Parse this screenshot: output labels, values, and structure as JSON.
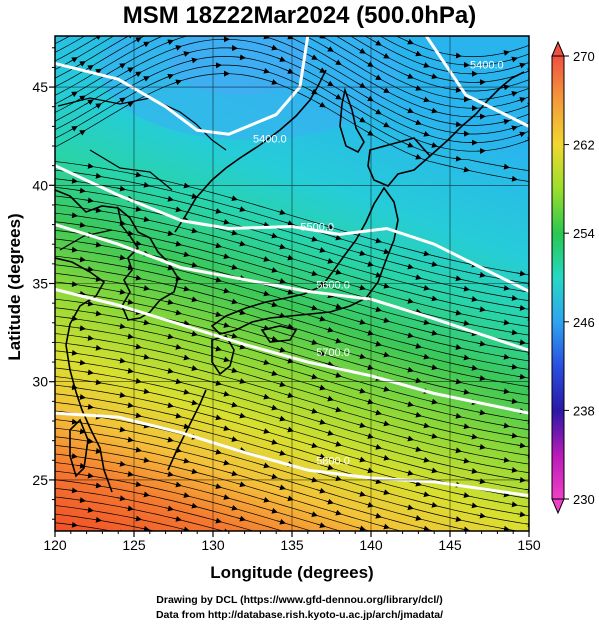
{
  "title": "MSM 18Z22Mar2024 (500.0hPa)",
  "axes": {
    "xlabel": "Longitude (degrees)",
    "ylabel": "Latitude  (degrees)",
    "x_ticks": [
      "120",
      "125",
      "130",
      "135",
      "140",
      "145",
      "150"
    ],
    "y_ticks": [
      "25",
      "30",
      "35",
      "40",
      "45"
    ],
    "xlim": [
      120,
      150
    ],
    "ylim": [
      22.4,
      47.6
    ]
  },
  "colorbar": {
    "ticks": [
      "270",
      "262",
      "254",
      "246",
      "238",
      "230"
    ],
    "min": 230,
    "max": 270,
    "colors_top_to_bottom": [
      "#f05040",
      "#f49a3a",
      "#f0d830",
      "#9bde2c",
      "#28c850",
      "#26d8c4",
      "#2ea4f0",
      "#2850e0",
      "#2a18a8",
      "#b81ab8",
      "#f040c8"
    ]
  },
  "contours": [
    {
      "label": "5400.0",
      "lat_path": [
        [
          120,
          46.2
        ],
        [
          124,
          45.4
        ],
        [
          127,
          44.0
        ],
        [
          129,
          42.8
        ],
        [
          131,
          42.6
        ],
        [
          134,
          43.6
        ],
        [
          135.5,
          45.0
        ],
        [
          136,
          47.6
        ]
      ]
    },
    {
      "label": "5400.0",
      "lat_path": [
        [
          143.5,
          47.6
        ],
        [
          146,
          44.6
        ],
        [
          150,
          43.0
        ]
      ]
    },
    {
      "label": "5500.0",
      "lat_path": [
        [
          120,
          41.0
        ],
        [
          124,
          39.5
        ],
        [
          128,
          38.2
        ],
        [
          131,
          37.8
        ],
        [
          135,
          37.9
        ],
        [
          138,
          37.5
        ],
        [
          141,
          37.8
        ],
        [
          144,
          37.0
        ],
        [
          150,
          34.6
        ]
      ]
    },
    {
      "label": "5600.0",
      "lat_path": [
        [
          120,
          38.0
        ],
        [
          124,
          37.0
        ],
        [
          128,
          35.8
        ],
        [
          132,
          35.2
        ],
        [
          136,
          34.6
        ],
        [
          140,
          34.2
        ],
        [
          144,
          33.2
        ],
        [
          150,
          31.6
        ]
      ]
    },
    {
      "label": "5700.0",
      "lat_path": [
        [
          120,
          34.7
        ],
        [
          124,
          33.9
        ],
        [
          128,
          32.9
        ],
        [
          132,
          31.9
        ],
        [
          136,
          31.0
        ],
        [
          140,
          30.3
        ],
        [
          144,
          29.4
        ],
        [
          150,
          28.4
        ]
      ]
    },
    {
      "label": "5800.0",
      "lat_path": [
        [
          120,
          28.4
        ],
        [
          124,
          28.2
        ],
        [
          128,
          27.4
        ],
        [
          132,
          26.4
        ],
        [
          136,
          25.5
        ],
        [
          140,
          25.1
        ],
        [
          144,
          24.9
        ],
        [
          150,
          24.2
        ]
      ]
    }
  ],
  "credits": {
    "line1": "Drawing by DCL (https://www.gfd-dennou.org/library/dcl/)",
    "line2": "Data from http://database.rish.kyoto-u.ac.jp/arch/jmadata/"
  }
}
